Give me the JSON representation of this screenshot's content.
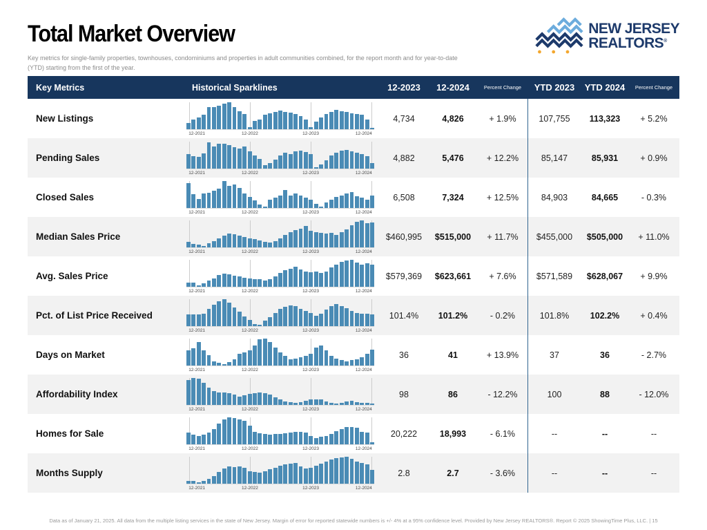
{
  "header": {
    "title": "Total Market Overview",
    "subtitle": "Key metrics for single-family properties, townhouses, condominiums and properties in adult communities combined, for the report month and for year-to-date (YTD) starting from the first of the year."
  },
  "logo": {
    "line1": "NEW JERSEY",
    "line2": "REALTORS",
    "registered": "®"
  },
  "table": {
    "columns": {
      "key_metrics": "Key Metrics",
      "sparklines": "Historical Sparklines",
      "month_prior": "12-2023",
      "month_current": "12-2024",
      "percent_change_month": "Percent Change",
      "ytd_prior": "YTD 2023",
      "ytd_current": "YTD 2024",
      "percent_change_ytd": "Percent Change"
    },
    "axis_labels": [
      "12-2021",
      "12-2022",
      "12-2023",
      "12-2024"
    ],
    "rows": [
      {
        "metric": "New Listings",
        "month_prior": "4,734",
        "month_current": "4,826",
        "month_change": "+ 1.9%",
        "ytd_prior": "107,755",
        "ytd_current": "113,323",
        "ytd_change": "+ 5.2%",
        "sparkline": [
          0.22,
          0.35,
          0.42,
          0.52,
          0.8,
          0.82,
          0.85,
          0.93,
          1.0,
          0.8,
          0.65,
          0.55,
          0.07,
          0.3,
          0.35,
          0.52,
          0.58,
          0.62,
          0.68,
          0.64,
          0.6,
          0.55,
          0.48,
          0.35,
          0.06,
          0.28,
          0.42,
          0.55,
          0.62,
          0.7,
          0.66,
          0.62,
          0.58,
          0.55,
          0.52,
          0.35,
          0.05
        ]
      },
      {
        "metric": "Pending Sales",
        "month_prior": "4,882",
        "month_current": "5,476",
        "month_change": "+ 12.2%",
        "ytd_prior": "85,147",
        "ytd_current": "85,931",
        "ytd_change": "+ 0.9%",
        "sparkline": [
          0.52,
          0.45,
          0.42,
          0.55,
          0.97,
          0.82,
          0.92,
          0.9,
          0.85,
          0.78,
          0.72,
          0.82,
          0.62,
          0.48,
          0.35,
          0.12,
          0.2,
          0.32,
          0.48,
          0.58,
          0.52,
          0.63,
          0.65,
          0.6,
          0.52,
          0.05,
          0.15,
          0.3,
          0.48,
          0.58,
          0.65,
          0.68,
          0.62,
          0.58,
          0.52,
          0.45,
          0.18
        ]
      },
      {
        "metric": "Closed Sales",
        "month_prior": "6,508",
        "month_current": "7,324",
        "month_change": "+ 12.5%",
        "ytd_prior": "84,903",
        "ytd_current": "84,665",
        "ytd_change": "- 0.3%",
        "sparkline": [
          0.92,
          0.5,
          0.32,
          0.52,
          0.55,
          0.62,
          0.7,
          1.0,
          0.82,
          0.86,
          0.72,
          0.52,
          0.4,
          0.28,
          0.12,
          0.05,
          0.3,
          0.36,
          0.44,
          0.66,
          0.46,
          0.52,
          0.44,
          0.36,
          0.3,
          0.15,
          0.05,
          0.18,
          0.3,
          0.4,
          0.46,
          0.52,
          0.58,
          0.42,
          0.36,
          0.3,
          0.44
        ]
      },
      {
        "metric": "Median Sales Price",
        "month_prior": "$460,995",
        "month_current": "$515,000",
        "month_change": "+ 11.7%",
        "ytd_prior": "$455,000",
        "ytd_current": "$505,000",
        "ytd_change": "+ 11.0%",
        "sparkline": [
          0.18,
          0.12,
          0.1,
          0.05,
          0.13,
          0.22,
          0.32,
          0.42,
          0.5,
          0.48,
          0.42,
          0.38,
          0.33,
          0.3,
          0.25,
          0.2,
          0.17,
          0.23,
          0.33,
          0.46,
          0.56,
          0.63,
          0.69,
          0.78,
          0.6,
          0.55,
          0.52,
          0.5,
          0.53,
          0.46,
          0.56,
          0.66,
          0.82,
          0.93,
          1.0,
          0.88,
          0.9
        ]
      },
      {
        "metric": "Avg. Sales Price",
        "month_prior": "$579,369",
        "month_current": "$623,661",
        "month_change": "+ 7.6%",
        "ytd_prior": "$571,589",
        "ytd_current": "$628,067",
        "ytd_change": "+ 9.9%",
        "sparkline": [
          0.15,
          0.13,
          0.05,
          0.11,
          0.22,
          0.3,
          0.42,
          0.48,
          0.45,
          0.4,
          0.36,
          0.33,
          0.3,
          0.28,
          0.26,
          0.22,
          0.26,
          0.36,
          0.5,
          0.6,
          0.66,
          0.72,
          0.62,
          0.56,
          0.52,
          0.56,
          0.5,
          0.56,
          0.7,
          0.82,
          0.9,
          0.97,
          1.0,
          0.88,
          0.82,
          0.86,
          0.8
        ]
      },
      {
        "metric": "Pct. of List Price Received",
        "month_prior": "101.4%",
        "month_current": "101.2%",
        "month_change": "- 0.2%",
        "ytd_prior": "101.8%",
        "ytd_current": "102.2%",
        "ytd_change": "+ 0.4%",
        "sparkline": [
          0.42,
          0.42,
          0.43,
          0.46,
          0.62,
          0.78,
          0.92,
          1.0,
          0.85,
          0.68,
          0.52,
          0.35,
          0.22,
          0.06,
          0.03,
          0.18,
          0.32,
          0.48,
          0.62,
          0.7,
          0.75,
          0.72,
          0.62,
          0.55,
          0.48,
          0.38,
          0.46,
          0.6,
          0.72,
          0.8,
          0.72,
          0.65,
          0.56,
          0.48,
          0.46,
          0.44,
          0.42
        ]
      },
      {
        "metric": "Days on Market",
        "month_prior": "36",
        "month_current": "41",
        "month_change": "+ 13.9%",
        "ytd_prior": "37",
        "ytd_current": "36",
        "ytd_change": "- 2.7%",
        "sparkline": [
          0.55,
          0.62,
          0.85,
          0.55,
          0.38,
          0.15,
          0.08,
          0.05,
          0.12,
          0.22,
          0.42,
          0.48,
          0.55,
          0.72,
          0.95,
          1.0,
          0.85,
          0.65,
          0.48,
          0.35,
          0.22,
          0.25,
          0.3,
          0.35,
          0.42,
          0.65,
          0.72,
          0.55,
          0.35,
          0.25,
          0.18,
          0.15,
          0.18,
          0.22,
          0.3,
          0.42,
          0.58
        ]
      },
      {
        "metric": "Affordability Index",
        "month_prior": "98",
        "month_current": "86",
        "month_change": "- 12.2%",
        "ytd_prior": "100",
        "ytd_current": "88",
        "ytd_change": "- 12.0%",
        "sparkline": [
          0.92,
          1.0,
          0.97,
          0.82,
          0.62,
          0.5,
          0.46,
          0.45,
          0.42,
          0.36,
          0.3,
          0.35,
          0.4,
          0.42,
          0.45,
          0.42,
          0.36,
          0.28,
          0.2,
          0.12,
          0.08,
          0.06,
          0.1,
          0.15,
          0.2,
          0.2,
          0.18,
          0.12,
          0.06,
          0.05,
          0.06,
          0.12,
          0.13,
          0.08,
          0.07,
          0.06,
          0.05
        ]
      },
      {
        "metric": "Homes for Sale",
        "month_prior": "20,222",
        "month_current": "18,993",
        "month_change": "- 6.1%",
        "ytd_prior": "--",
        "ytd_current": "--",
        "ytd_change": "--",
        "sparkline": [
          0.42,
          0.35,
          0.3,
          0.35,
          0.42,
          0.55,
          0.75,
          0.92,
          1.0,
          0.95,
          0.92,
          0.85,
          0.68,
          0.45,
          0.4,
          0.36,
          0.34,
          0.36,
          0.38,
          0.4,
          0.42,
          0.45,
          0.46,
          0.42,
          0.3,
          0.22,
          0.26,
          0.3,
          0.38,
          0.48,
          0.56,
          0.62,
          0.64,
          0.6,
          0.46,
          0.42,
          0.06
        ]
      },
      {
        "metric": "Months Supply",
        "month_prior": "2.8",
        "month_current": "2.7",
        "month_change": "- 3.6%",
        "ytd_prior": "--",
        "ytd_current": "--",
        "ytd_change": "--",
        "sparkline": [
          0.1,
          0.08,
          0.05,
          0.09,
          0.16,
          0.26,
          0.42,
          0.56,
          0.62,
          0.6,
          0.62,
          0.58,
          0.46,
          0.42,
          0.4,
          0.46,
          0.52,
          0.58,
          0.66,
          0.7,
          0.73,
          0.76,
          0.62,
          0.56,
          0.58,
          0.66,
          0.73,
          0.8,
          0.88,
          0.93,
          0.97,
          1.0,
          0.9,
          0.82,
          0.75,
          0.7,
          0.5
        ]
      }
    ]
  },
  "footer": {
    "text": "Data as of January 21, 2025. All data from the multiple listing services in the state of New Jersey. Margin of error for reported statewide numbers is +/- 4% at a 95% confidence level. Provided by New Jersey REALTORS®. Report © 2025 ShowingTime Plus, LLC.",
    "separator": "|",
    "page_number": "15"
  },
  "colors": {
    "header_bg": "#17365d",
    "bar_blue": "#4a8bb5",
    "divider_blue": "#30648f",
    "row_alt": "#f2f2f2",
    "logo_navy": "#1d3a6b",
    "logo_light_blue": "#6cacdd",
    "logo_orange": "#f3a72e"
  }
}
